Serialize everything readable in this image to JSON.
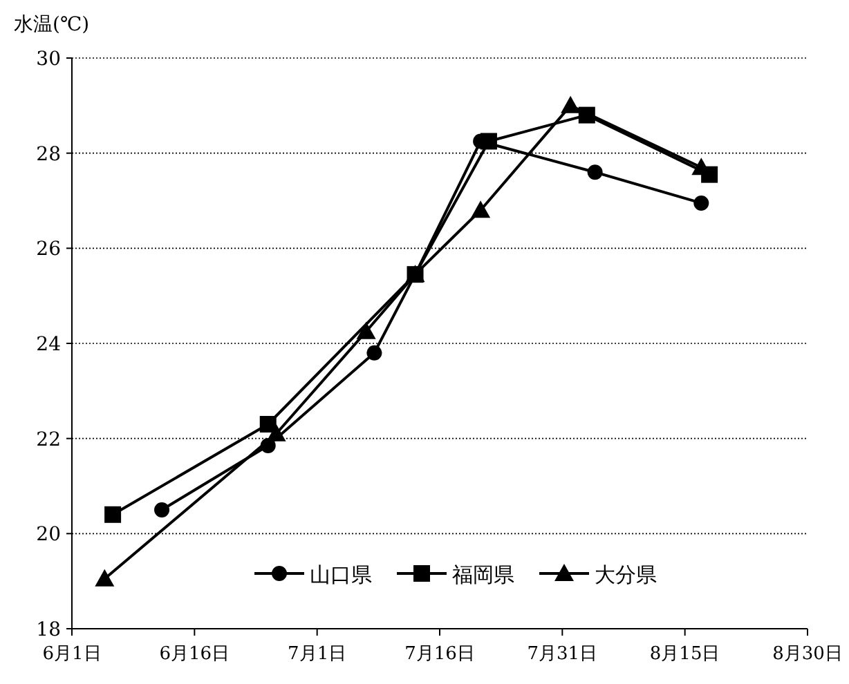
{
  "chart_data": {
    "type": "line",
    "ylabel": "水温(℃)",
    "series": [
      {
        "name": "山口県",
        "color": "#000000",
        "marker": "circle",
        "x": [
          "--06-12",
          "--06-25",
          "--07-08",
          "--07-13",
          "--07-21",
          "--08-04",
          "--08-17"
        ],
        "values": [
          20.5,
          21.85,
          23.8,
          25.45,
          28.25,
          27.6,
          26.95
        ]
      },
      {
        "name": "福岡県",
        "color": "#000000",
        "marker": "square",
        "x": [
          "--06-06",
          "--06-25",
          "--07-13",
          "--07-22",
          "--08-03",
          "--08-18"
        ],
        "values": [
          20.4,
          22.3,
          25.45,
          28.25,
          28.8,
          27.55
        ]
      },
      {
        "name": "大分県",
        "color": "#000000",
        "marker": "triangle",
        "x": [
          "--06-05",
          "--06-26",
          "--07-07",
          "--07-13",
          "--07-21",
          "--08-01",
          "--08-17"
        ],
        "values": [
          19.05,
          22.1,
          24.25,
          25.45,
          26.8,
          29.0,
          27.7
        ]
      }
    ],
    "xlim": [
      "--06-01",
      "--08-30"
    ],
    "xticks": [
      {
        "value": "--06-01",
        "label": "6月1日"
      },
      {
        "value": "--06-16",
        "label": "6月16日"
      },
      {
        "value": "--07-01",
        "label": "7月1日"
      },
      {
        "value": "--07-16",
        "label": "7月16日"
      },
      {
        "value": "--07-31",
        "label": "7月31日"
      },
      {
        "value": "--08-15",
        "label": "8月15日"
      },
      {
        "value": "--08-30",
        "label": "8月30日"
      }
    ],
    "ylim": [
      18,
      30
    ],
    "yticks": [
      18,
      20,
      22,
      24,
      26,
      28,
      30
    ],
    "grid": "y",
    "legend": "bottom right",
    "line_style": "solid"
  }
}
